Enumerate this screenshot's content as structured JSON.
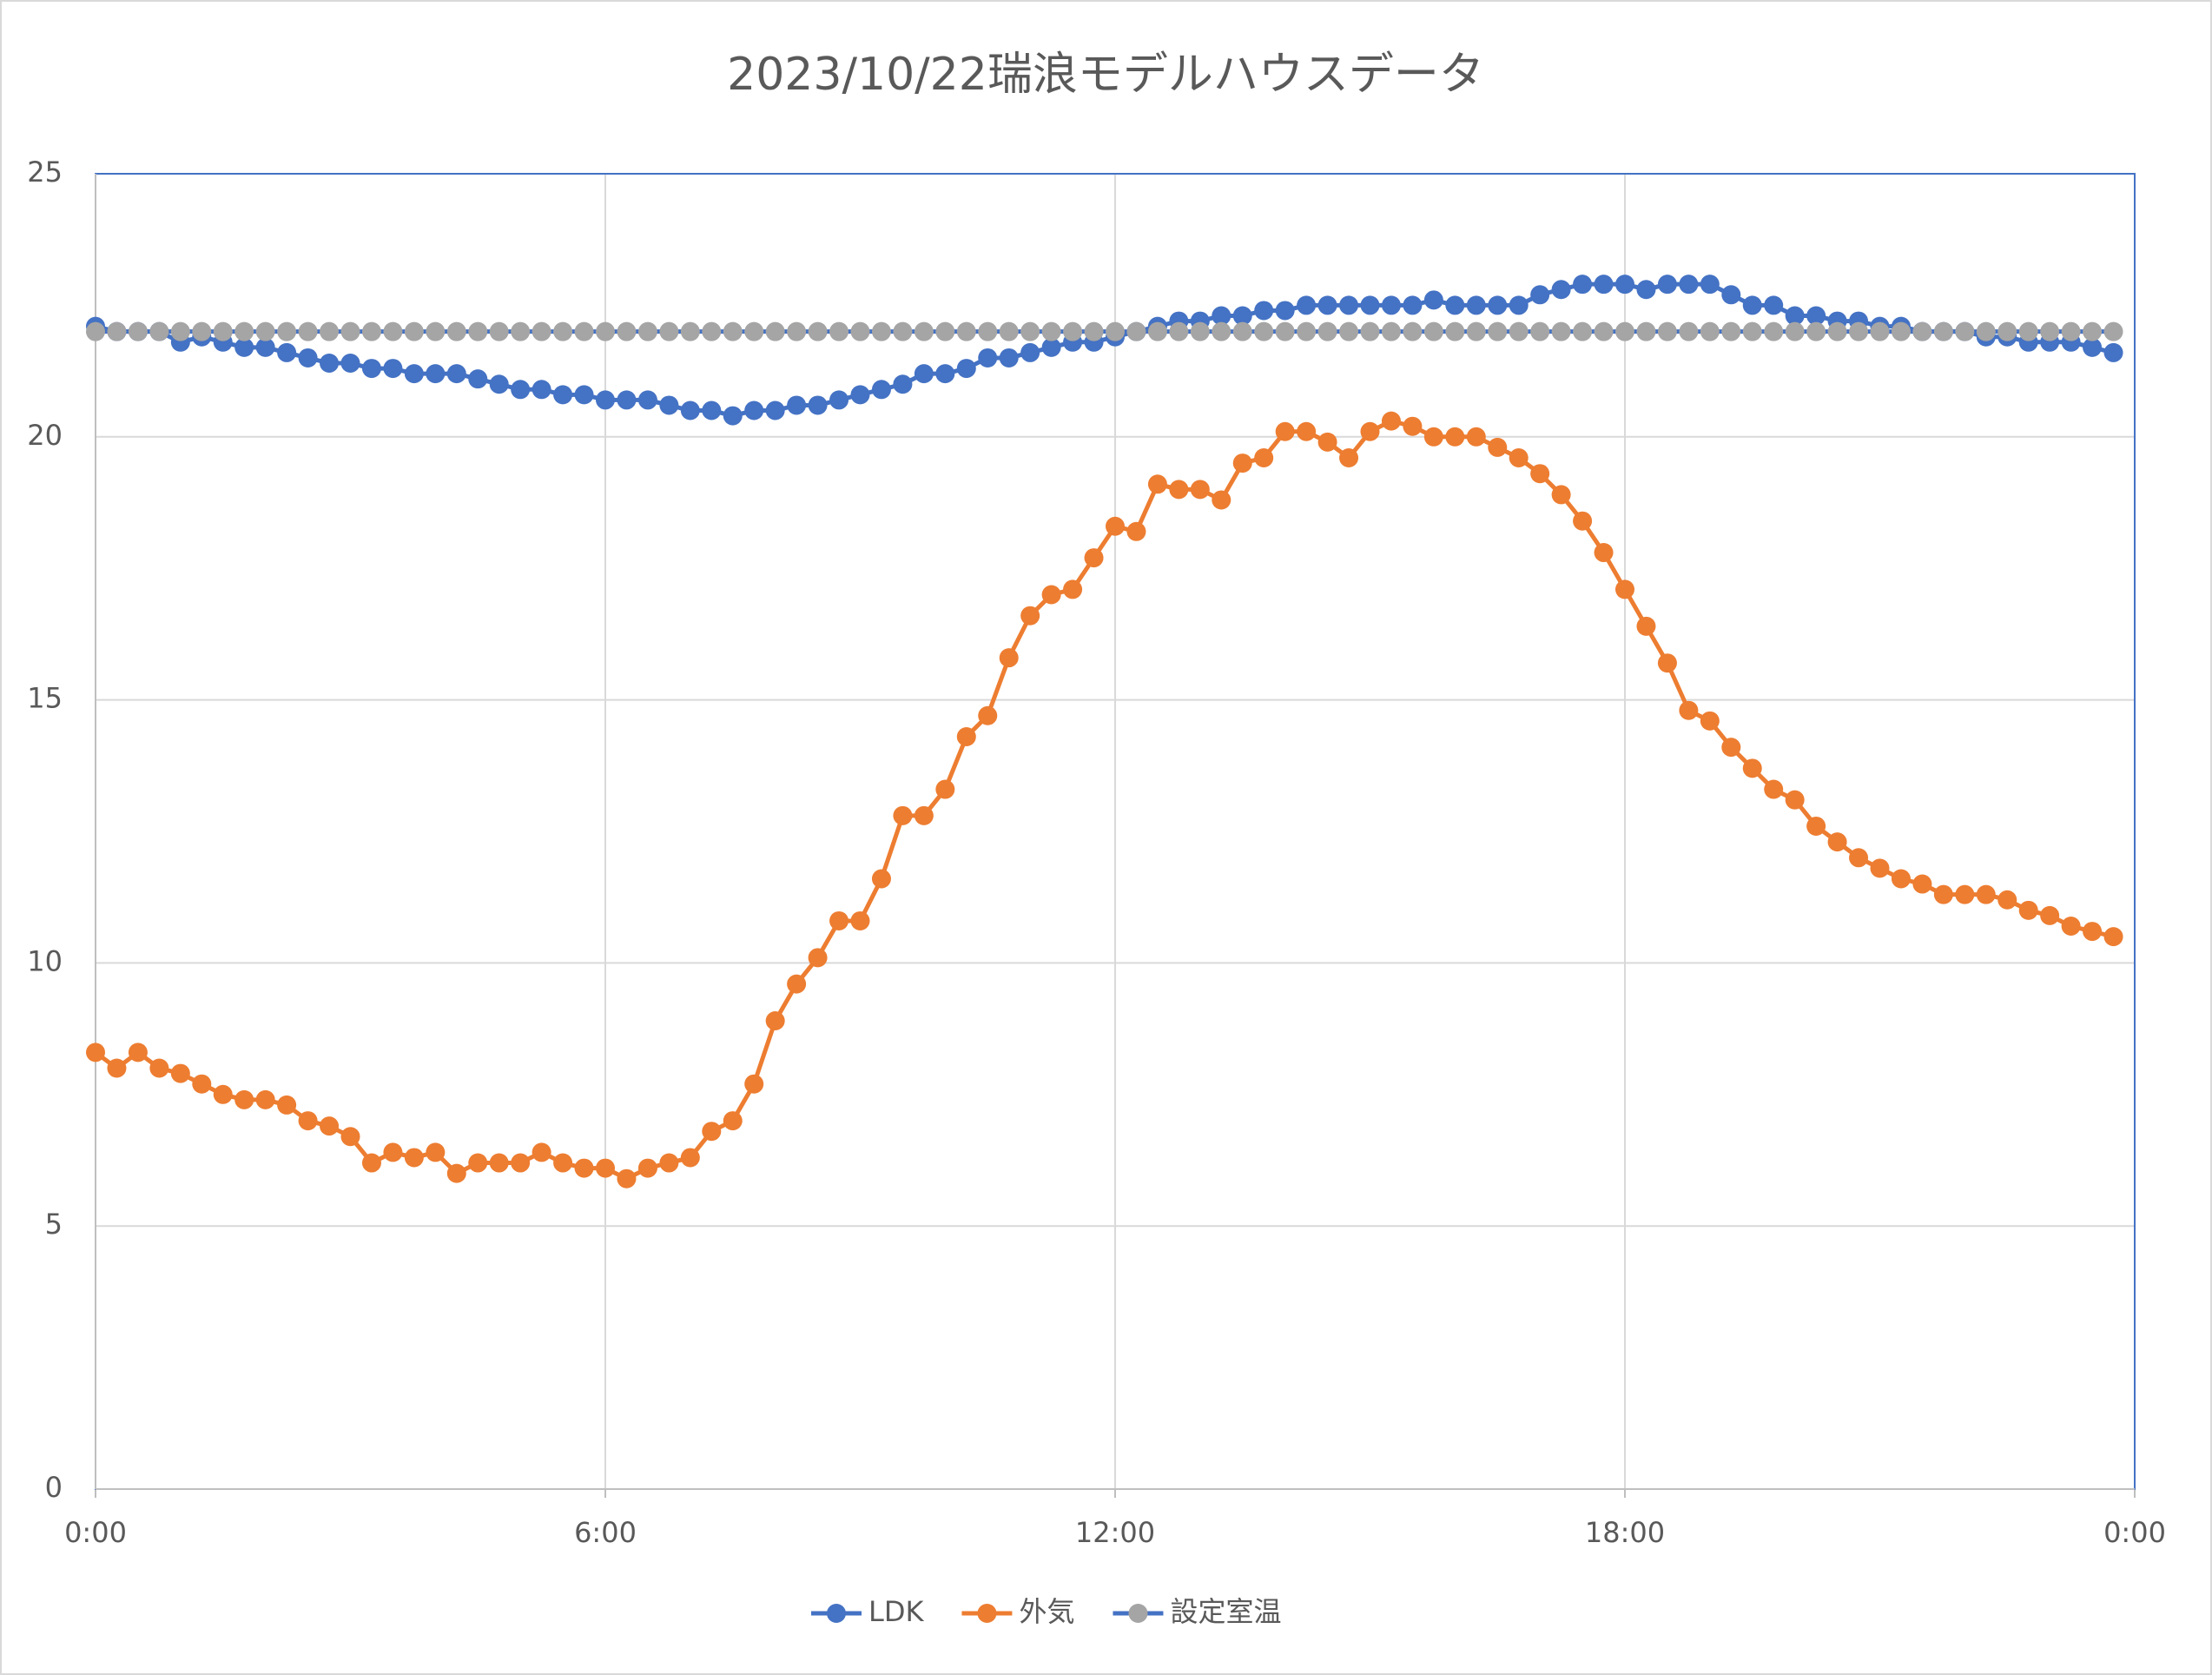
{
  "chart_data": {
    "type": "line",
    "title": "2023/10/22瑞浪モデルハウスデータ",
    "x": [
      0,
      0.25,
      0.5,
      0.75,
      1,
      1.25,
      1.5,
      1.75,
      2,
      2.25,
      2.5,
      2.75,
      3,
      3.25,
      3.5,
      3.75,
      4,
      4.25,
      4.5,
      4.75,
      5,
      5.25,
      5.5,
      5.75,
      6,
      6.25,
      6.5,
      6.75,
      7,
      7.25,
      7.5,
      7.75,
      8,
      8.25,
      8.5,
      8.75,
      9,
      9.25,
      9.5,
      9.75,
      10,
      10.25,
      10.5,
      10.75,
      11,
      11.25,
      11.5,
      11.75,
      12,
      12.25,
      12.5,
      12.75,
      13,
      13.25,
      13.5,
      13.75,
      14,
      14.25,
      14.5,
      14.75,
      15,
      15.25,
      15.5,
      15.75,
      16,
      16.25,
      16.5,
      16.75,
      17,
      17.25,
      17.5,
      17.75,
      18,
      18.25,
      18.5,
      18.75,
      19,
      19.25,
      19.5,
      19.75,
      20,
      20.25,
      20.5,
      20.75,
      21,
      21.25,
      21.5,
      21.75,
      22,
      22.25,
      22.5,
      22.75,
      23,
      23.25,
      23.5,
      23.75
    ],
    "series": [
      {
        "name": "LDK",
        "color": "#4472c4",
        "values": [
          22.1,
          22.0,
          22.0,
          22.0,
          21.8,
          21.9,
          21.8,
          21.7,
          21.7,
          21.6,
          21.5,
          21.4,
          21.4,
          21.3,
          21.3,
          21.2,
          21.2,
          21.2,
          21.1,
          21.0,
          20.9,
          20.9,
          20.8,
          20.8,
          20.7,
          20.7,
          20.7,
          20.6,
          20.5,
          20.5,
          20.4,
          20.5,
          20.5,
          20.6,
          20.6,
          20.7,
          20.8,
          20.9,
          21.0,
          21.2,
          21.2,
          21.3,
          21.5,
          21.5,
          21.6,
          21.7,
          21.8,
          21.8,
          21.9,
          22.0,
          22.1,
          22.2,
          22.2,
          22.3,
          22.3,
          22.4,
          22.4,
          22.5,
          22.5,
          22.5,
          22.5,
          22.5,
          22.5,
          22.6,
          22.5,
          22.5,
          22.5,
          22.5,
          22.7,
          22.8,
          22.9,
          22.9,
          22.9,
          22.8,
          22.9,
          22.9,
          22.9,
          22.7,
          22.5,
          22.5,
          22.3,
          22.3,
          22.2,
          22.2,
          22.1,
          22.1,
          22.0,
          22.0,
          22.0,
          21.9,
          21.9,
          21.8,
          21.8,
          21.8,
          21.7,
          21.6
        ]
      },
      {
        "name": "外気",
        "color": "#ed7d31",
        "values": [
          8.3,
          8.0,
          8.3,
          8.0,
          7.9,
          7.7,
          7.5,
          7.4,
          7.4,
          7.3,
          7.0,
          6.9,
          6.7,
          6.2,
          6.4,
          6.3,
          6.4,
          6.0,
          6.2,
          6.2,
          6.2,
          6.4,
          6.2,
          6.1,
          6.1,
          5.9,
          6.1,
          6.2,
          6.3,
          6.8,
          7.0,
          7.7,
          8.9,
          9.6,
          10.1,
          10.8,
          10.8,
          11.6,
          12.8,
          12.8,
          13.3,
          14.3,
          14.7,
          15.8,
          16.6,
          17.0,
          17.1,
          17.7,
          18.3,
          18.2,
          19.1,
          19.0,
          19.0,
          18.8,
          19.5,
          19.6,
          20.1,
          20.1,
          19.9,
          19.6,
          20.1,
          20.3,
          20.2,
          20.0,
          20.0,
          20.0,
          19.8,
          19.6,
          19.3,
          18.9,
          18.4,
          17.8,
          17.1,
          16.4,
          15.7,
          14.8,
          14.6,
          14.1,
          13.7,
          13.3,
          13.1,
          12.6,
          12.3,
          12.0,
          11.8,
          11.6,
          11.5,
          11.3,
          11.3,
          11.3,
          11.2,
          11.0,
          10.9,
          10.7,
          10.6,
          10.5
        ]
      },
      {
        "name": "設定室温",
        "color": "#a5a5a5",
        "line_color": "#4472c4",
        "values": [
          22,
          22,
          22,
          22,
          22,
          22,
          22,
          22,
          22,
          22,
          22,
          22,
          22,
          22,
          22,
          22,
          22,
          22,
          22,
          22,
          22,
          22,
          22,
          22,
          22,
          22,
          22,
          22,
          22,
          22,
          22,
          22,
          22,
          22,
          22,
          22,
          22,
          22,
          22,
          22,
          22,
          22,
          22,
          22,
          22,
          22,
          22,
          22,
          22,
          22,
          22,
          22,
          22,
          22,
          22,
          22,
          22,
          22,
          22,
          22,
          22,
          22,
          22,
          22,
          22,
          22,
          22,
          22,
          22,
          22,
          22,
          22,
          22,
          22,
          22,
          22,
          22,
          22,
          22,
          22,
          22,
          22,
          22,
          22,
          22,
          22,
          22,
          22,
          22,
          22,
          22,
          22,
          22,
          22,
          22,
          22
        ]
      }
    ],
    "xlim": [
      0,
      24
    ],
    "xticks": [
      {
        "value": 0,
        "label": "0:00"
      },
      {
        "value": 6,
        "label": "6:00"
      },
      {
        "value": 12,
        "label": "12:00"
      },
      {
        "value": 18,
        "label": "18:00"
      },
      {
        "value": 24,
        "label": "0:00"
      }
    ],
    "ylim": [
      0,
      25
    ],
    "yticks": [
      0,
      5,
      10,
      15,
      20,
      25
    ],
    "grid": true,
    "legend": "bottom"
  }
}
